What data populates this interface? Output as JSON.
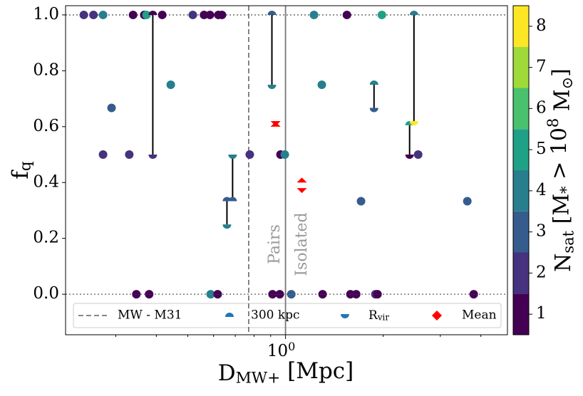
{
  "chart_data": {
    "type": "scatter",
    "xlabel": "D_{MW+} [Mpc]",
    "ylabel": "f_{q}",
    "xscale": "log",
    "xlim": [
      0.21,
      4.83
    ],
    "ylim": [
      -0.145,
      1.033
    ],
    "xticks": [
      {
        "value": 1,
        "label": "10^{0}"
      }
    ],
    "xticks_minor": [
      0.3,
      0.4,
      0.5,
      0.6,
      0.7,
      0.8,
      0.9,
      2,
      3,
      4
    ],
    "yticks": [
      {
        "value": 0,
        "label": "0.0"
      },
      0.2,
      0.4,
      0.6,
      0.8,
      {
        "value": 1,
        "label": "1.0"
      }
    ],
    "hlines": [
      0,
      1
    ],
    "vlines": [
      {
        "name": "MW - M31",
        "x": 0.77,
        "style": "dashed"
      },
      {
        "x": 1,
        "style": "solid"
      }
    ],
    "annotations": [
      "Pairs",
      "Isolated"
    ],
    "x": [
      0.239,
      0.256,
      0.274,
      0.274,
      0.291,
      0.33,
      0.339,
      0.347,
      0.367,
      0.373,
      0.38,
      0.39,
      0.417,
      0.443,
      0.518,
      0.561,
      0.585,
      0.588,
      0.618,
      0.621,
      0.637,
      0.66,
      0.687,
      0.776,
      0.908,
      0.912,
      0.96,
      0.965,
      0.995,
      1.042,
      1.224,
      1.294,
      1.301,
      1.546,
      1.585,
      1.651,
      1.709,
      1.874,
      1.892,
      1.921,
      1.981,
      2.412,
      2.488,
      2.563,
      3.633,
      3.802
    ],
    "series": [
      {
        "name": "300 kpc",
        "values": [
          1,
          1,
          1,
          0.5,
          0.667,
          0.5,
          1,
          0,
          1,
          1,
          0,
          1,
          1,
          0.75,
          1,
          1,
          1,
          0,
          0,
          1,
          1,
          0.333,
          0.333,
          0.5,
          1,
          0,
          0,
          0.5,
          0.5,
          0,
          1,
          0.75,
          0,
          1,
          0,
          0,
          0.333,
          0.75,
          0,
          0,
          1,
          0.605,
          1,
          0.5,
          0.333,
          0
        ],
        "nsat": [
          2,
          2,
          4,
          2,
          3,
          2,
          1,
          1,
          1,
          5,
          1,
          1,
          1,
          4,
          2,
          1,
          1,
          4,
          1,
          1,
          1,
          3,
          3,
          2,
          3,
          1,
          1,
          1,
          4,
          3,
          4,
          4,
          1,
          1,
          1,
          1,
          3,
          4,
          2,
          1,
          5,
          5,
          4,
          2,
          3,
          1
        ]
      },
      {
        "name": "R_{vir}",
        "values": [
          1,
          1,
          1,
          0.5,
          0.667,
          0.5,
          1,
          0,
          1,
          1,
          0,
          0.5,
          1,
          0.75,
          1,
          1,
          1,
          0,
          0,
          1,
          1,
          0.25,
          0.5,
          0.5,
          0.75,
          0,
          0,
          0.5,
          0.5,
          0,
          1,
          0.75,
          0,
          1,
          0,
          0,
          0.333,
          0.667,
          0,
          0,
          1,
          0.5,
          0.62,
          0.5,
          0.333,
          0
        ],
        "nsat": [
          2,
          2,
          4,
          2,
          3,
          2,
          1,
          1,
          1,
          5,
          1,
          2,
          1,
          4,
          2,
          1,
          1,
          4,
          1,
          1,
          1,
          4,
          4,
          2,
          4,
          1,
          1,
          1,
          4,
          3,
          4,
          4,
          1,
          1,
          1,
          1,
          3,
          3,
          2,
          1,
          5,
          1,
          8,
          2,
          3,
          1
        ]
      }
    ],
    "mean": {
      "name": "Mean",
      "color": "#ff0000",
      "x": [
        0.932,
        1.123
      ],
      "values_300": [
        0.6,
        0.4
      ],
      "values_rvir": [
        0.62,
        0.38
      ]
    },
    "colorbar": {
      "label": "N_{sat} [M_{*} > 10^{8} M_{⊙}]",
      "lim": [
        0.5,
        8.5
      ],
      "ticks": [
        1,
        2,
        3,
        4,
        5,
        6,
        7,
        8
      ],
      "colors": [
        "#440154",
        "#46327e",
        "#365c8d",
        "#277f8e",
        "#1fa187",
        "#4ac16d",
        "#a0da39",
        "#fde725"
      ]
    }
  }
}
